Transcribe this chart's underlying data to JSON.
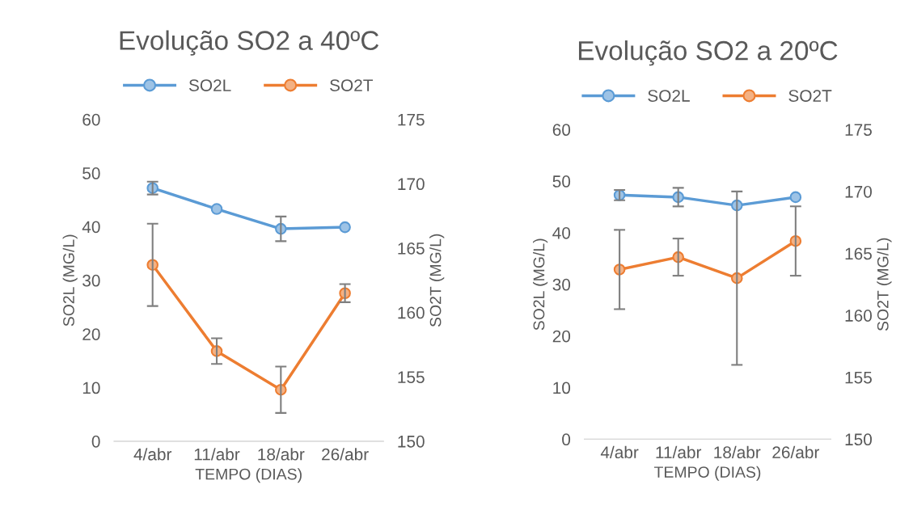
{
  "chart_data": [
    {
      "type": "line",
      "title": "Evolução SO2 a 40ºC",
      "categories": [
        "4/abr",
        "11/abr",
        "18/abr",
        "26/abr"
      ],
      "xlabel": "TEMPO (DIAS)",
      "ylabel": "SO2L (MG/L)",
      "y2label": "SO2T (MG/L)",
      "ylim": [
        0,
        60
      ],
      "yticks": [
        0,
        10,
        20,
        30,
        40,
        50,
        60
      ],
      "y2lim": [
        150,
        175
      ],
      "y2ticks": [
        150,
        155,
        160,
        165,
        170,
        175
      ],
      "legend": "top",
      "marker": "circle",
      "grid": false,
      "series": [
        {
          "name": "SO2L",
          "color": "#5b9bd5",
          "values": [
            47.2,
            43.3,
            39.6,
            39.9
          ],
          "errors": [
            1.2,
            null,
            2.3,
            null
          ]
        },
        {
          "name": "SO2T",
          "color": "#ed7d31",
          "axis": "y2",
          "values": [
            163.7,
            157.0,
            154.0,
            161.5
          ],
          "errors": [
            3.2,
            1.0,
            1.8,
            0.7
          ]
        }
      ]
    },
    {
      "type": "line",
      "title": "Evolução SO2 a 20ºC",
      "categories": [
        "4/abr",
        "11/abr",
        "18/abr",
        "26/abr"
      ],
      "xlabel": "TEMPO (DIAS)",
      "ylabel": "SO2L (MG/L)",
      "y2label": "SO2T (MG/L)",
      "ylim": [
        0,
        60
      ],
      "yticks": [
        0,
        10,
        20,
        30,
        40,
        50,
        60
      ],
      "y2lim": [
        150,
        175
      ],
      "y2ticks": [
        150,
        155,
        160,
        165,
        170,
        175
      ],
      "legend": "top",
      "marker": "circle",
      "grid": false,
      "series": [
        {
          "name": "SO2L",
          "color": "#5b9bd5",
          "values": [
            47.3,
            46.9,
            45.3,
            46.9
          ],
          "errors": [
            1.0,
            1.8,
            null,
            null
          ]
        },
        {
          "name": "SO2T",
          "color": "#ed7d31",
          "axis": "y2",
          "values": [
            163.7,
            164.7,
            163.0,
            166.0
          ],
          "errors": [
            3.2,
            1.5,
            7.0,
            2.8
          ]
        }
      ]
    }
  ]
}
